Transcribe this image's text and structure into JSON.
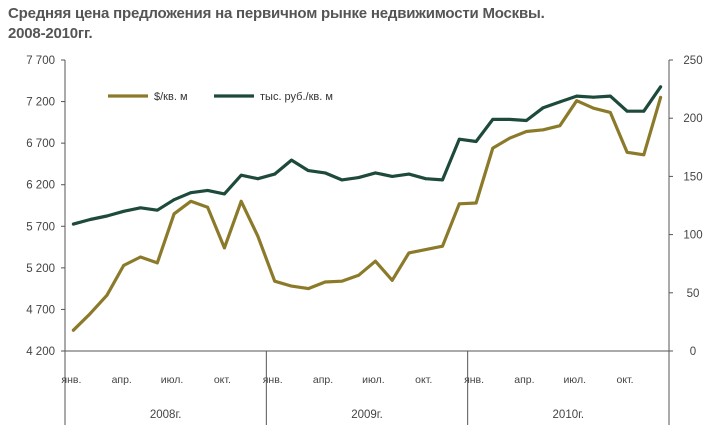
{
  "title_line1": "Средняя цена предложения на первичном рынке недвижимости Москвы.",
  "title_line2": "2008-2010гг.",
  "chart_data": {
    "type": "line",
    "y_left": {
      "ticks": [
        "4 200",
        "4 700",
        "5 200",
        "5 700",
        "6 200",
        "6 700",
        "7 200",
        "7 700"
      ],
      "range": [
        4200,
        7700
      ]
    },
    "y_right": {
      "ticks": [
        "0",
        "50",
        "100",
        "150",
        "200",
        "250"
      ],
      "range": [
        0,
        250
      ]
    },
    "month_labels": [
      "янв.",
      "апр.",
      "июл.",
      "окт.",
      "янв.",
      "апр.",
      "июл.",
      "окт.",
      "янв.",
      "апр.",
      "июл.",
      "окт."
    ],
    "year_labels": [
      "2008г.",
      "2009г.",
      "2010г."
    ],
    "x_count": 36,
    "series": [
      {
        "name": "$/кв. м",
        "axis": "left",
        "color": "#8c7a2b",
        "values": [
          4450,
          4650,
          4870,
          5230,
          5330,
          5260,
          5850,
          6000,
          5930,
          5440,
          6000,
          5580,
          5040,
          4980,
          4950,
          5030,
          5040,
          5110,
          5280,
          5050,
          5380,
          5420,
          5460,
          5970,
          5980,
          6640,
          6760,
          6840,
          6860,
          6910,
          7210,
          7120,
          7070,
          6590,
          6560,
          7250
        ]
      },
      {
        "name": "тыс. руб./кв. м",
        "axis": "right",
        "color": "#1e4a3b",
        "values": [
          109,
          113,
          116,
          120,
          123,
          121,
          130,
          136,
          138,
          135,
          151,
          148,
          152,
          164,
          155,
          153,
          147,
          149,
          153,
          150,
          152,
          148,
          147,
          182,
          180,
          199,
          199,
          198,
          209,
          214,
          219,
          218,
          219,
          206,
          206,
          227
        ]
      }
    ]
  }
}
